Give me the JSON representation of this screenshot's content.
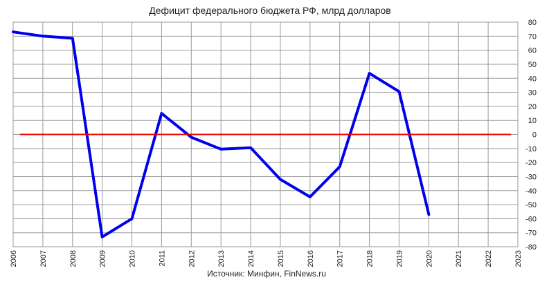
{
  "chart_data": {
    "type": "line",
    "title": "Дефицит федерального бюджета РФ, млрд долларов",
    "source": "Источник: Минфин, FinNews.ru",
    "x": [
      2006,
      2007,
      2008,
      2009,
      2010,
      2011,
      2012,
      2013,
      2014,
      2015,
      2016,
      2017,
      2018,
      2019,
      2020,
      2021,
      2022,
      2023
    ],
    "x_tick_labels": [
      "2006",
      "2007",
      "2008",
      "2009",
      "2010",
      "2011",
      "2012",
      "2013",
      "2014",
      "2015",
      "2016",
      "2017",
      "2018",
      "2019",
      "2020",
      "2021",
      "2022",
      "2023"
    ],
    "y_ticks": [
      80,
      70,
      60,
      50,
      40,
      30,
      20,
      10,
      0,
      -10,
      -20,
      -30,
      -40,
      -50,
      -60,
      -70,
      -80
    ],
    "y_tick_labels": [
      "80",
      "70",
      "60",
      "50",
      "40",
      "30",
      "20",
      "10",
      "0",
      "-10",
      "-20",
      "-30",
      "-40",
      "-50",
      "-60",
      "-70",
      "-80"
    ],
    "ylim": [
      -80,
      80
    ],
    "xlim": [
      2006,
      2023
    ],
    "y_axis_side": "right",
    "grid": true,
    "series": [
      {
        "color": "#0000ee",
        "x": [
          2006,
          2007,
          2008,
          2009,
          2010,
          2011,
          2012,
          2013,
          2014,
          2015,
          2016,
          2017,
          2018,
          2019,
          2020
        ],
        "values": [
          73,
          70,
          68.5,
          -73,
          -60,
          15,
          -2,
          -10.5,
          -9.5,
          -32,
          -44.5,
          -23,
          43.5,
          30.5,
          -57
        ]
      },
      {
        "color": "#ee0000",
        "x": [
          2006.25,
          2022.75
        ],
        "values": [
          0,
          0
        ]
      }
    ]
  }
}
